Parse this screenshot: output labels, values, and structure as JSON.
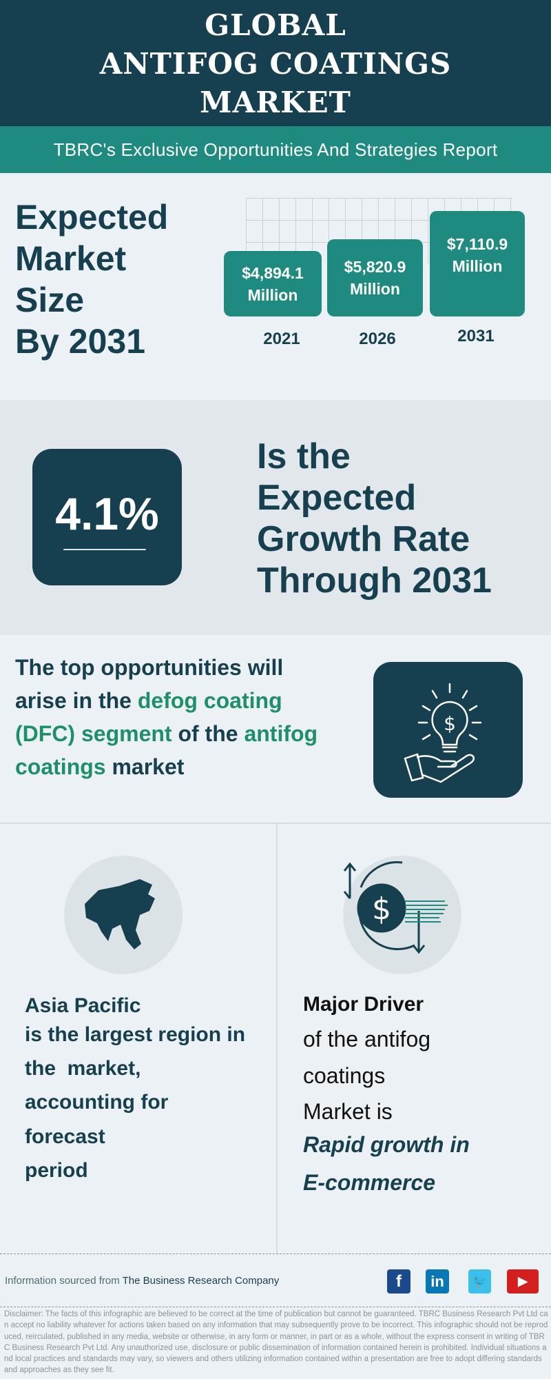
{
  "header": {
    "title_lines": [
      "GLOBAL",
      "ANTIFOG COATINGS",
      "MARKET"
    ],
    "subtitle": "TBRC's Exclusive Opportunities And Strategies Report"
  },
  "market_size": {
    "heading_lines": [
      "Expected",
      "Market",
      "Size",
      "By 2031"
    ],
    "bars": [
      {
        "value": "$4,894.1",
        "unit": "Million",
        "year": "2021"
      },
      {
        "value": "$5,820.9",
        "unit": "Million",
        "year": "2026"
      },
      {
        "value": "$7,110.9",
        "unit": "Million",
        "year": "2031"
      }
    ]
  },
  "growth": {
    "rate": "4.1%",
    "text_lines": [
      "Is the",
      "Expected",
      "Growth Rate",
      "Through 2031"
    ]
  },
  "opportunity": {
    "l1": "The top opportunities will",
    "l2a": "arise in the ",
    "l2b": "defog coating",
    "l3a": "(DFC) segment",
    "l3b": " of the ",
    "l3c": "antifog",
    "l4a": "coatings",
    "l4b": " market",
    "icon": "lightbulb-dollar-hand-icon"
  },
  "region": {
    "title": "Asia Pacific",
    "lines": [
      "is the largest region in",
      "the  market,",
      "accounting for",
      "forecast",
      "period"
    ],
    "icon": "asia-map-icon"
  },
  "driver": {
    "title": "Major Driver",
    "lines": [
      "of the antifog",
      "coatings",
      "Market is"
    ],
    "highlight": [
      "Rapid growth in",
      "E-commerce"
    ],
    "icon": "dollar-cycle-icon"
  },
  "footer": {
    "source_prefix": "Information sourced from ",
    "source_name": "The Business Research Company",
    "social": [
      "facebook",
      "linkedin",
      "twitter",
      "youtube"
    ]
  },
  "disclaimer": "Disclaimer: The facts of this infographic are believed to be correct at the time of publication but cannot be guaranteed. TBRC Business Research Pvt Ltd can accept no liability whatever for actions taken based on any information that may subsequently prove to be incorrect. This infographic should not be reproduced, reirculated, published in any media, website or otherwise, in any form or manner, in part or as a whole, without the express consent in writing of TBRC Business Research Pvt Ltd. Any unauthorized use, disclosure or public dissemination of information contained herein is prohibited. Individual situations and local practices and standards may vary, so viewers and others utilizing information contained within a presentation are free to adopt differing standards and approaches as they see fit.",
  "colors": {
    "dark": "#163f4f",
    "teal": "#1f8a80",
    "green": "#1f8f6a",
    "background": "#ebf1f4"
  }
}
